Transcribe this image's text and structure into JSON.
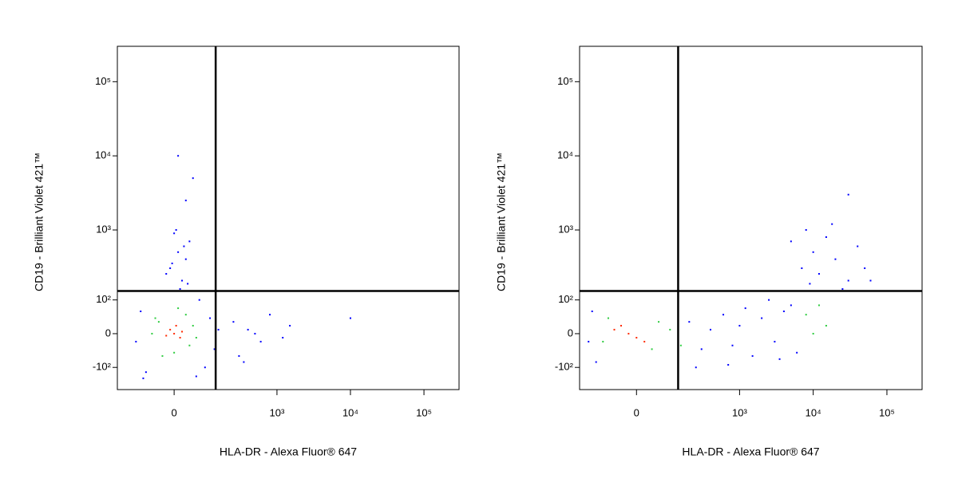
{
  "chart_data": [
    {
      "type": "scatter",
      "x_label": "HLA-DR - Alexa Fluor® 647",
      "y_label": "CD19 - Brilliant Violet 421™",
      "xscale": "biex",
      "yscale": "biex",
      "xlim": [
        -230,
        300000
      ],
      "ylim": [
        -220,
        300000
      ],
      "xticks": [
        {
          "value": 0,
          "label": "0"
        },
        {
          "value": 1000,
          "label": "10³"
        },
        {
          "value": 10000,
          "label": "10⁴"
        },
        {
          "value": 100000,
          "label": "10⁵"
        }
      ],
      "yticks": [
        {
          "value": -100,
          "label": "-10²"
        },
        {
          "value": 0,
          "label": "0"
        },
        {
          "value": 100,
          "label": "10²"
        },
        {
          "value": 1000,
          "label": "10³"
        },
        {
          "value": 10000,
          "label": "10⁴"
        },
        {
          "value": 100000,
          "label": "10⁵"
        }
      ],
      "quadrant_x": 136,
      "quadrant_y": 140,
      "series": [
        {
          "color": "#0000ff",
          "x": [
            -100,
            -80,
            90,
            110,
            -120,
            70,
            -90,
            130,
            150,
            60,
            20,
            -10,
            30,
            10,
            -20,
            40,
            0,
            15,
            -5,
            25,
            35,
            5,
            10,
            50,
            30,
            250,
            300,
            400,
            600,
            800,
            1200,
            1500,
            350,
            500,
            10000
          ],
          "y": [
            60,
            -120,
            -100,
            40,
            -20,
            100,
            -150,
            -40,
            10,
            -140,
            200,
            300,
            400,
            500,
            250,
            700,
            900,
            150,
            350,
            600,
            180,
            1000,
            10000,
            5000,
            2500,
            30,
            -60,
            10,
            -20,
            50,
            -10,
            20,
            -80,
            0,
            40
          ]
        },
        {
          "color": "#2ecc40",
          "x": [
            -40,
            40,
            -60,
            50,
            0,
            -30,
            30,
            60,
            -50,
            10
          ],
          "y": [
            30,
            -30,
            0,
            20,
            -50,
            -60,
            50,
            -10,
            40,
            70
          ]
        },
        {
          "color": "#ff2a00",
          "x": [
            0,
            -10,
            15,
            5,
            -20,
            20
          ],
          "y": [
            0,
            10,
            -10,
            20,
            -5,
            5
          ]
        }
      ]
    },
    {
      "type": "scatter",
      "x_label": "HLA-DR - Alexa Fluor® 647",
      "y_label": "CD19 - Brilliant Violet 421™",
      "xscale": "biex",
      "yscale": "biex",
      "xlim": [
        -230,
        300000
      ],
      "ylim": [
        -220,
        300000
      ],
      "xticks": [
        {
          "value": 0,
          "label": "0"
        },
        {
          "value": 1000,
          "label": "10³"
        },
        {
          "value": 10000,
          "label": "10⁴"
        },
        {
          "value": 100000,
          "label": "10⁵"
        }
      ],
      "yticks": [
        {
          "value": -100,
          "label": "-10²"
        },
        {
          "value": 0,
          "label": "0"
        },
        {
          "value": 100,
          "label": "10²"
        },
        {
          "value": 1000,
          "label": "10³"
        },
        {
          "value": 10000,
          "label": "10⁴"
        },
        {
          "value": 100000,
          "label": "10⁵"
        }
      ],
      "quadrant_x": 136,
      "quadrant_y": 140,
      "series": [
        {
          "color": "#0000ff",
          "x": [
            -150,
            -130,
            -170,
            200,
            300,
            400,
            600,
            800,
            1000,
            1500,
            2000,
            3000,
            4000,
            5000,
            6000,
            250,
            700,
            1200,
            2500,
            3500,
            7000,
            10000,
            15000,
            20000,
            30000,
            40000,
            50000,
            8000,
            12000,
            25000,
            18000,
            60000,
            5000,
            9000,
            30000
          ],
          "y": [
            60,
            -80,
            -20,
            30,
            -40,
            10,
            50,
            -30,
            20,
            -60,
            40,
            -20,
            60,
            80,
            -50,
            -100,
            -90,
            70,
            100,
            -70,
            300,
            500,
            800,
            400,
            200,
            600,
            300,
            1000,
            250,
            150,
            1200,
            200,
            700,
            180,
            3000
          ]
        },
        {
          "color": "#2ecc40",
          "x": [
            -80,
            40,
            -100,
            60,
            100,
            150,
            8000,
            12000,
            15000,
            10000
          ],
          "y": [
            40,
            -40,
            -20,
            30,
            10,
            -30,
            50,
            80,
            20,
            0
          ]
        },
        {
          "color": "#ff2a00",
          "x": [
            -20,
            -40,
            0,
            -60,
            20
          ],
          "y": [
            0,
            20,
            -10,
            10,
            -20
          ]
        }
      ]
    }
  ]
}
